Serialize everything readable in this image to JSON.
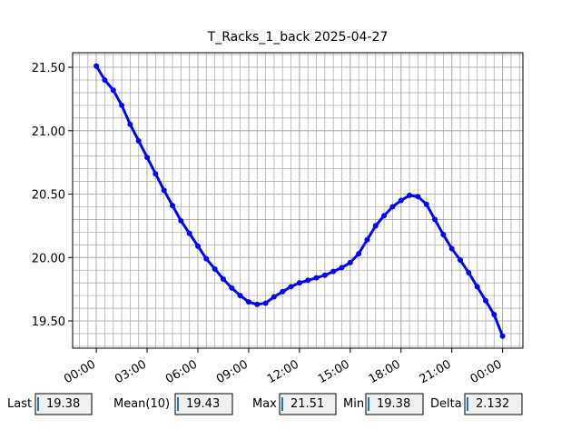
{
  "chart_data": {
    "type": "scatter",
    "title": "T_Racks_1_back 2025-04-27",
    "x": [
      0,
      0.5,
      1,
      1.5,
      2,
      2.5,
      3,
      3.5,
      4,
      4.5,
      5,
      5.5,
      6,
      6.5,
      7,
      7.5,
      8,
      8.5,
      9,
      9.5,
      10,
      10.5,
      11,
      11.5,
      12,
      12.5,
      13,
      13.5,
      14,
      14.5,
      15,
      15.5,
      16,
      16.5,
      17,
      17.5,
      18,
      18.5,
      19,
      19.5,
      20,
      20.5,
      21,
      21.5,
      22,
      22.5,
      23,
      23.5,
      24
    ],
    "series": [
      {
        "color": "#0000ff",
        "values": [
          21.51,
          21.4,
          21.32,
          21.2,
          21.05,
          20.92,
          20.79,
          20.66,
          20.53,
          20.41,
          20.29,
          20.19,
          20.09,
          19.99,
          19.91,
          19.83,
          19.76,
          19.7,
          19.65,
          19.63,
          19.64,
          19.69,
          19.73,
          19.77,
          19.8,
          19.82,
          19.84,
          19.86,
          19.89,
          19.92,
          19.96,
          20.03,
          20.14,
          20.25,
          20.33,
          20.4,
          20.45,
          20.49,
          20.48,
          20.42,
          20.3,
          20.18,
          20.07,
          19.98,
          19.88,
          19.77,
          19.66,
          19.55,
          19.38
        ]
      }
    ],
    "xlim": [
      -1.4,
      25.2
    ],
    "xticks": [
      {
        "value": 0,
        "label": "00:00"
      },
      {
        "value": 3,
        "label": "03:00"
      },
      {
        "value": 6,
        "label": "06:00"
      },
      {
        "value": 9,
        "label": "09:00"
      },
      {
        "value": 12,
        "label": "12:00"
      },
      {
        "value": 15,
        "label": "15:00"
      },
      {
        "value": 18,
        "label": "18:00"
      },
      {
        "value": 21,
        "label": "21:00"
      },
      {
        "value": 24,
        "label": "00:00"
      }
    ],
    "ylim": [
      19.285,
      21.615
    ],
    "yticks": [
      {
        "value": 19.5,
        "label": "19.50"
      },
      {
        "value": 20,
        "label": "20.00"
      },
      {
        "value": 20.5,
        "label": "20.50"
      },
      {
        "value": 21,
        "label": "21.00"
      },
      {
        "value": 21.5,
        "label": "21.50"
      }
    ],
    "grid": true
  },
  "widgets": [
    {
      "label": "Last",
      "value": 19.38
    },
    {
      "label": "Mean(10)",
      "value": 19.43
    },
    {
      "label": "Max",
      "value": 21.51
    },
    {
      "label": "Min",
      "value": 19.38
    },
    {
      "label": "Delta",
      "value": 2.132
    }
  ]
}
